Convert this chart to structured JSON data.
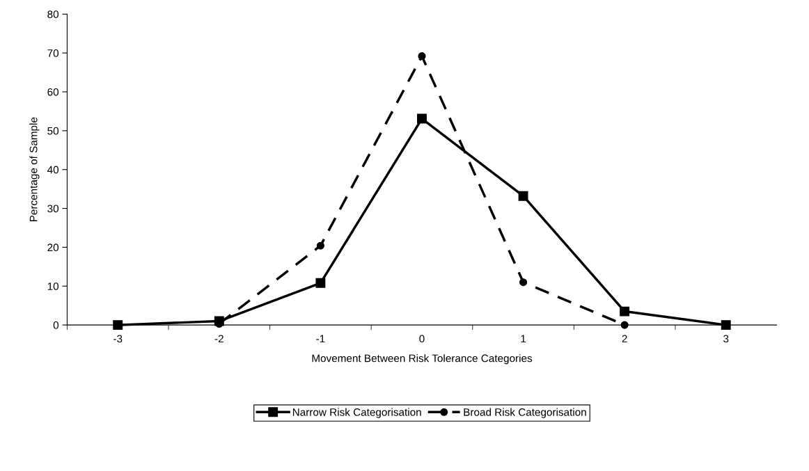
{
  "chart_data": {
    "type": "line",
    "xlabel": "Movement Between Risk Tolerance Categories",
    "ylabel": "Percentage of Sample",
    "categories": [
      "-3",
      "-2",
      "-1",
      "0",
      "1",
      "2",
      "3"
    ],
    "series": [
      {
        "name": "Narrow Risk Categorisation",
        "color": "#000000",
        "marker": "square",
        "line_style": "solid",
        "values": [
          0,
          1,
          10.8,
          53.1,
          33.2,
          3.5,
          0
        ]
      },
      {
        "name": "Broad Risk Categorisation",
        "color": "#000000",
        "marker": "circle",
        "line_style": "dashed",
        "values": [
          null,
          0.3,
          20.4,
          69.2,
          11,
          0,
          null
        ]
      }
    ],
    "ylim": [
      0,
      80
    ],
    "yticks": [
      0,
      10,
      20,
      30,
      40,
      50,
      60,
      70,
      80
    ],
    "grid": false,
    "legend": "bottom"
  }
}
